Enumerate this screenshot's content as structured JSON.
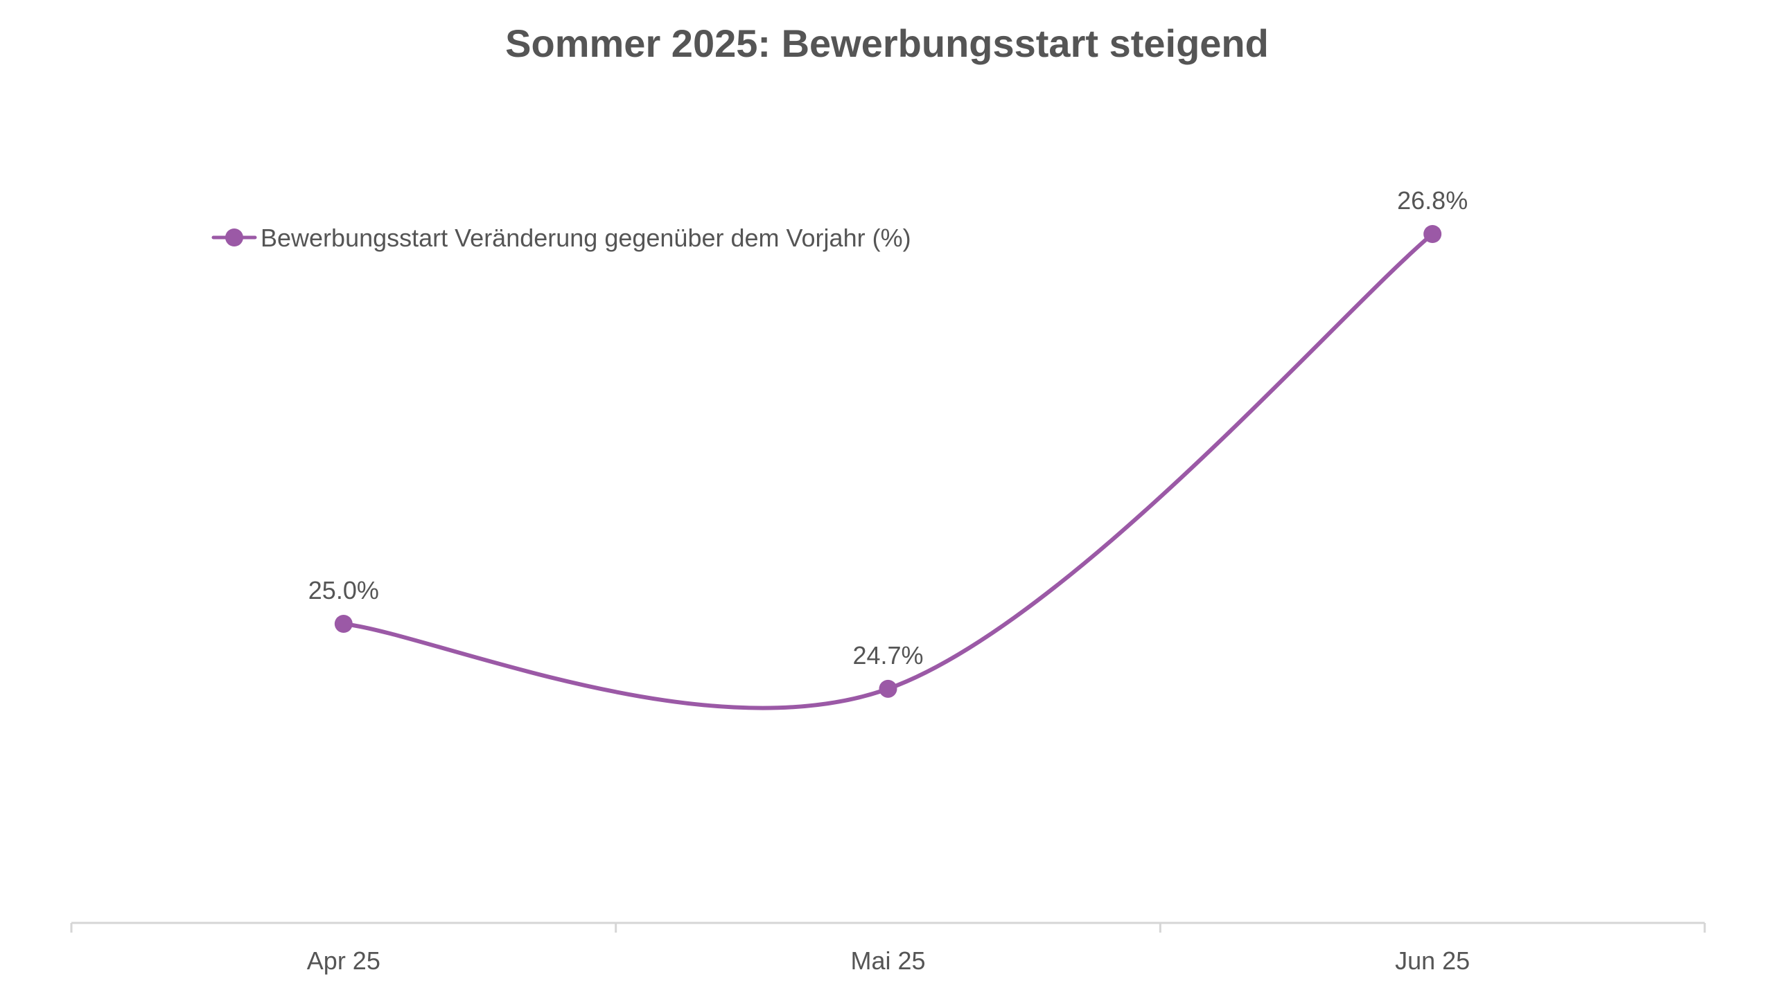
{
  "chart_data": {
    "type": "line",
    "title": "Sommer 2025: Bewerbungsstart steigend",
    "categories": [
      "Apr 25",
      "Mai 25",
      "Jun 25"
    ],
    "series": [
      {
        "name": "Bewerbungsstart Veränderung gegenüber dem Vorjahr (%)",
        "values": [
          25.0,
          24.7,
          26.8
        ],
        "labels": [
          "25.0%",
          "24.7%",
          "26.8%"
        ],
        "color": "#9b59a6"
      }
    ],
    "xlabel": "",
    "ylabel": "",
    "grid": false,
    "legend_position": "top-left",
    "smooth": true
  }
}
